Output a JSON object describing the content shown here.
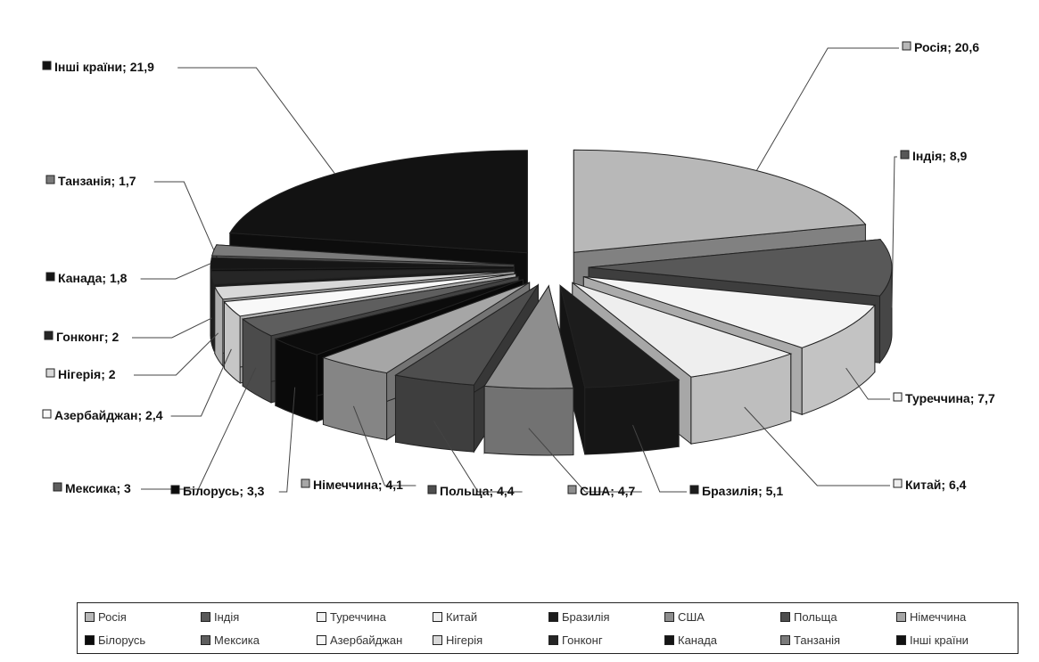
{
  "chart_data": {
    "type": "pie",
    "style": "3d-exploded",
    "title": "",
    "series": [
      {
        "name": "Росія",
        "value": 20.6,
        "display": "20,6",
        "label": "Росія; 20,6",
        "color": "#b8b8b8",
        "label_side": "right"
      },
      {
        "name": "Індія",
        "value": 8.9,
        "display": "8,9",
        "label": "Індія; 8,9",
        "color": "#585858",
        "label_side": "right"
      },
      {
        "name": "Туреччина",
        "value": 7.7,
        "display": "7,7",
        "label": "Туреччина; 7,7",
        "color": "#f4f4f4",
        "label_side": "right"
      },
      {
        "name": "Китай",
        "value": 6.4,
        "display": "6,4",
        "label": "Китай; 6,4",
        "color": "#eeeeee",
        "label_side": "right"
      },
      {
        "name": "Бразилія",
        "value": 5.1,
        "display": "5,1",
        "label": "Бразилія; 5,1",
        "color": "#1c1c1c",
        "label_side": "right"
      },
      {
        "name": "США",
        "value": 4.7,
        "display": "4,7",
        "label": "США; 4,7",
        "color": "#8e8e8e",
        "label_side": "left"
      },
      {
        "name": "Польща",
        "value": 4.4,
        "display": "4,4",
        "label": "Польща; 4,4",
        "color": "#4e4e4e",
        "label_side": "left"
      },
      {
        "name": "Німеччина",
        "value": 4.1,
        "display": "4,1",
        "label": "Німеччина; 4,1",
        "color": "#a6a6a6",
        "label_side": "left"
      },
      {
        "name": "Білорусь",
        "value": 3.3,
        "display": "3,3",
        "label": "Білорусь; 3,3",
        "color": "#0c0c0c",
        "label_side": "left"
      },
      {
        "name": "Мексика",
        "value": 3,
        "display": "3",
        "label": "Мексика; 3",
        "color": "#5e5e5e",
        "label_side": "left"
      },
      {
        "name": "Азербайджан",
        "value": 2.4,
        "display": "2,4",
        "label": "Азербайджан; 2,4",
        "color": "#f8f8f8",
        "label_side": "left"
      },
      {
        "name": "Нігерія",
        "value": 2,
        "display": "2",
        "label": "Нігерія; 2",
        "color": "#d8d8d8",
        "label_side": "left"
      },
      {
        "name": "Гонконг",
        "value": 2,
        "display": "2",
        "label": "Гонконг; 2",
        "color": "#262626",
        "label_side": "left"
      },
      {
        "name": "Канада",
        "value": 1.8,
        "display": "1,8",
        "label": "Канада; 1,8",
        "color": "#161616",
        "label_side": "left"
      },
      {
        "name": "Танзанія",
        "value": 1.7,
        "display": "1,7",
        "label": "Танзанія; 1,7",
        "color": "#7a7a7a",
        "label_side": "left"
      },
      {
        "name": "Інші країни",
        "value": 21.9,
        "display": "21,9",
        "label": "Інші країни; 21,9",
        "color": "#121212",
        "label_side": "left"
      }
    ],
    "legend_placement": "bottom",
    "legend": [
      "Росія",
      "Індія",
      "Туреччина",
      "Китай",
      "Бразилія",
      "США",
      "Польща",
      "Німеччина",
      "Білорусь",
      "Мексика",
      "Азербайджан",
      "Нігерія",
      "Гонконг",
      "Канада",
      "Танзанія",
      "Інші країни"
    ]
  }
}
